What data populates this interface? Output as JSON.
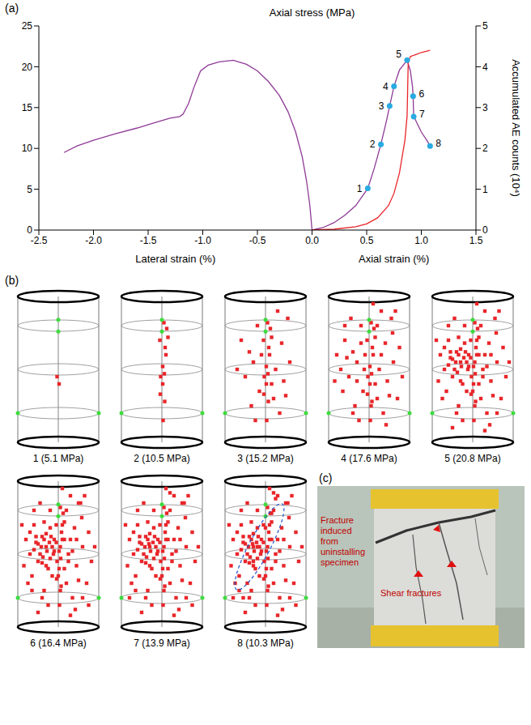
{
  "chart_data": [
    {
      "type": "line",
      "letter": "(a)",
      "y_label": "Axial stress (MPa)",
      "y2_label": "Accumulated AE counts (10⁴)",
      "x_labels": [
        "Lateral strain (%)",
        "Axial strain (%)"
      ],
      "xlim": [
        -2.5,
        1.5
      ],
      "xticks": [
        -2.5,
        {
          "value": -2,
          "label": "-2.0"
        },
        -1.5,
        {
          "value": -1,
          "label": "-1.0"
        },
        -0.5,
        {
          "value": 0,
          "label": "0.0"
        },
        0.5,
        {
          "value": 1,
          "label": "1.0"
        },
        1.5
      ],
      "ylim": [
        0,
        25
      ],
      "yticks": [
        0,
        5,
        10,
        15,
        20,
        25
      ],
      "y2lim": [
        0,
        5
      ],
      "y2ticks": [
        0,
        1,
        2,
        3,
        4,
        5
      ],
      "series": [
        {
          "type": "line",
          "color": "#8e3a96",
          "x": [
            0,
            -0.02,
            -0.05,
            -0.09,
            -0.15,
            -0.22,
            -0.3,
            -0.4,
            -0.5,
            -0.6,
            -0.72,
            -0.85,
            -0.95,
            -1.02,
            -1.08,
            -1.13,
            -1.18,
            -1.21,
            -1.3,
            -1.45,
            -1.6,
            -1.8,
            -2.0,
            -2.15,
            -2.27
          ],
          "values": [
            0,
            3,
            6,
            9,
            12,
            14.5,
            16.5,
            18.2,
            19.5,
            20.3,
            20.8,
            20.6,
            20.2,
            19.5,
            17.5,
            15.5,
            14.2,
            13.9,
            13.7,
            13.1,
            12.5,
            11.8,
            11.0,
            10.3,
            9.5
          ]
        },
        {
          "type": "line",
          "color": "#8e3a96",
          "x": [
            0,
            0.1,
            0.2,
            0.3,
            0.4,
            0.51,
            0.57,
            0.63,
            0.68,
            0.71,
            0.75,
            0.8,
            0.87,
            0.9,
            0.92,
            0.925,
            0.93,
            0.95,
            1.0,
            1.05,
            1.08
          ],
          "values": [
            0,
            0.3,
            0.9,
            1.8,
            3.0,
            5.1,
            7.6,
            10.5,
            13.3,
            15.2,
            17.6,
            19.6,
            20.8,
            19.5,
            17.5,
            16.4,
            13.9,
            13.4,
            12.0,
            11.0,
            10.3
          ]
        },
        {
          "type": "line",
          "axis": "y2",
          "color": "#e8252a",
          "x": [
            0,
            0.2,
            0.4,
            0.5,
            0.6,
            0.7,
            0.75,
            0.8,
            0.85,
            0.87,
            0.88,
            0.9,
            0.95,
            1.0,
            1.08
          ],
          "values": [
            0,
            0.02,
            0.08,
            0.15,
            0.3,
            0.6,
            0.9,
            1.4,
            2.2,
            2.8,
            4.1,
            4.25,
            4.3,
            4.35,
            4.4
          ]
        },
        {
          "type": "scatter",
          "marker": "circle",
          "color": "#29abe2",
          "x": [
            0.51,
            0.63,
            0.71,
            0.75,
            0.87,
            0.925,
            0.93,
            1.08
          ],
          "values": [
            5.1,
            10.5,
            15.2,
            17.6,
            20.8,
            16.4,
            13.9,
            10.3
          ],
          "point_labels": [
            "1",
            "2",
            "3",
            "4",
            "5",
            "6",
            "7",
            "8"
          ]
        }
      ]
    },
    {
      "type": "scatter",
      "letter": "(b)",
      "xlim": [
        -1,
        1
      ],
      "ylim": [
        0,
        1
      ],
      "tick_labels": false,
      "color": "#e8262a",
      "marker": "square",
      "panel_labels": [
        "1 (5.1 MPa)",
        "2 (10.5 MPa)",
        "3 (15.2 MPa)",
        "4 (17.6 MPa)",
        "5 (20.8 MPa)",
        "6 (16.4 MPa)",
        "7 (13.9 MPa)",
        "8 (10.3 MPa)"
      ],
      "points": [
        [
          -0.03,
          0.45,
          1
        ],
        [
          0.02,
          0.4,
          1
        ],
        [
          0.05,
          0.82,
          2
        ],
        [
          0.12,
          0.78,
          2
        ],
        [
          -0.05,
          0.7,
          2
        ],
        [
          0.08,
          0.65,
          2
        ],
        [
          0.1,
          0.6,
          2
        ],
        [
          0.02,
          0.52,
          2
        ],
        [
          0.06,
          0.47,
          2
        ],
        [
          -0.04,
          0.33,
          2
        ],
        [
          0.07,
          0.28,
          2
        ],
        [
          0.03,
          0.15,
          2
        ],
        [
          0.15,
          0.72,
          2
        ],
        [
          -0.6,
          0.7,
          3
        ],
        [
          -0.4,
          0.62,
          3
        ],
        [
          -0.3,
          0.55,
          3
        ],
        [
          0.4,
          0.68,
          3
        ],
        [
          0.55,
          0.85,
          3
        ],
        [
          0.3,
          0.9,
          3
        ],
        [
          -0.2,
          0.8,
          3
        ],
        [
          0.25,
          0.5,
          3
        ],
        [
          -0.5,
          0.45,
          3
        ],
        [
          0.45,
          0.42,
          3
        ],
        [
          -0.15,
          0.35,
          3
        ],
        [
          0.2,
          0.3,
          3
        ],
        [
          -0.35,
          0.25,
          3
        ],
        [
          0.35,
          0.2,
          3
        ],
        [
          -0.1,
          0.6,
          3
        ],
        [
          0.6,
          0.55,
          3
        ],
        [
          -0.7,
          0.5,
          3
        ],
        [
          0.15,
          0.4,
          3
        ],
        [
          -0.25,
          0.15,
          3
        ],
        [
          0.5,
          0.32,
          3
        ],
        [
          -0.8,
          0.6,
          4
        ],
        [
          0.75,
          0.65,
          4
        ],
        [
          -0.65,
          0.35,
          4
        ],
        [
          0.7,
          0.3,
          4
        ],
        [
          -0.45,
          0.85,
          4
        ],
        [
          0.1,
          0.95,
          4
        ],
        [
          -0.3,
          0.42,
          4
        ],
        [
          0.3,
          0.6,
          4
        ],
        [
          -0.55,
          0.58,
          4
        ],
        [
          0.58,
          0.75,
          4
        ],
        [
          -0.85,
          0.42,
          4
        ],
        [
          0.82,
          0.45,
          4
        ],
        [
          -0.2,
          0.68,
          4
        ],
        [
          0.05,
          0.25,
          4
        ],
        [
          -0.4,
          0.2,
          4
        ],
        [
          0.42,
          0.12,
          4
        ],
        [
          -0.12,
          0.5,
          4
        ],
        [
          0.2,
          0.8,
          4
        ],
        [
          -0.6,
          0.8,
          4
        ],
        [
          0.65,
          0.9,
          4
        ],
        [
          -0.5,
          0.57,
          5
        ],
        [
          -0.42,
          0.55,
          5
        ],
        [
          -0.35,
          0.6,
          5
        ],
        [
          -0.28,
          0.52,
          5
        ],
        [
          -0.22,
          0.58,
          5
        ],
        [
          -0.15,
          0.55,
          5
        ],
        [
          -0.45,
          0.5,
          5
        ],
        [
          -0.38,
          0.48,
          5
        ],
        [
          -0.3,
          0.64,
          5
        ],
        [
          -0.18,
          0.62,
          5
        ],
        [
          -0.1,
          0.52,
          5
        ],
        [
          -0.55,
          0.62,
          5
        ],
        [
          -0.6,
          0.53,
          5
        ],
        [
          -0.05,
          0.58,
          5
        ],
        [
          0.05,
          0.55,
          5
        ],
        [
          0.15,
          0.6,
          5
        ],
        [
          0.25,
          0.45,
          5
        ],
        [
          0.35,
          0.52,
          5
        ],
        [
          -0.7,
          0.65,
          5
        ],
        [
          -0.25,
          0.4,
          5
        ],
        [
          0.1,
          0.7,
          5
        ],
        [
          0.45,
          0.6,
          5
        ],
        [
          -0.75,
          0.3,
          5
        ],
        [
          0.6,
          0.2,
          5
        ],
        [
          -0.5,
          0.1,
          5
        ],
        [
          0.3,
          0.08,
          5
        ],
        [
          0.9,
          0.55,
          5
        ],
        [
          -0.9,
          0.7,
          5
        ],
        [
          0.0,
          0.35,
          5
        ],
        [
          -0.35,
          0.72,
          5
        ],
        [
          -0.4,
          0.44,
          6
        ],
        [
          -0.2,
          0.47,
          6
        ],
        [
          0.5,
          0.85,
          6
        ],
        [
          -0.65,
          0.25,
          6
        ],
        [
          0.75,
          0.15,
          6
        ],
        [
          -0.32,
          0.57,
          7
        ],
        [
          0.2,
          0.92,
          7
        ],
        [
          -0.8,
          0.2,
          7
        ],
        [
          -0.55,
          0.2,
          8
        ],
        [
          -0.45,
          0.3,
          8
        ],
        [
          -0.3,
          0.45,
          8
        ],
        [
          -0.2,
          0.55,
          8
        ],
        [
          0.0,
          0.68,
          8
        ],
        [
          0.15,
          0.78,
          8
        ],
        [
          0.25,
          0.88,
          8
        ]
      ]
    }
  ],
  "photo": {
    "letter": "(c)",
    "annotations": [
      "Fracture induced from uninstalling specimen",
      "Shear fractures"
    ]
  }
}
